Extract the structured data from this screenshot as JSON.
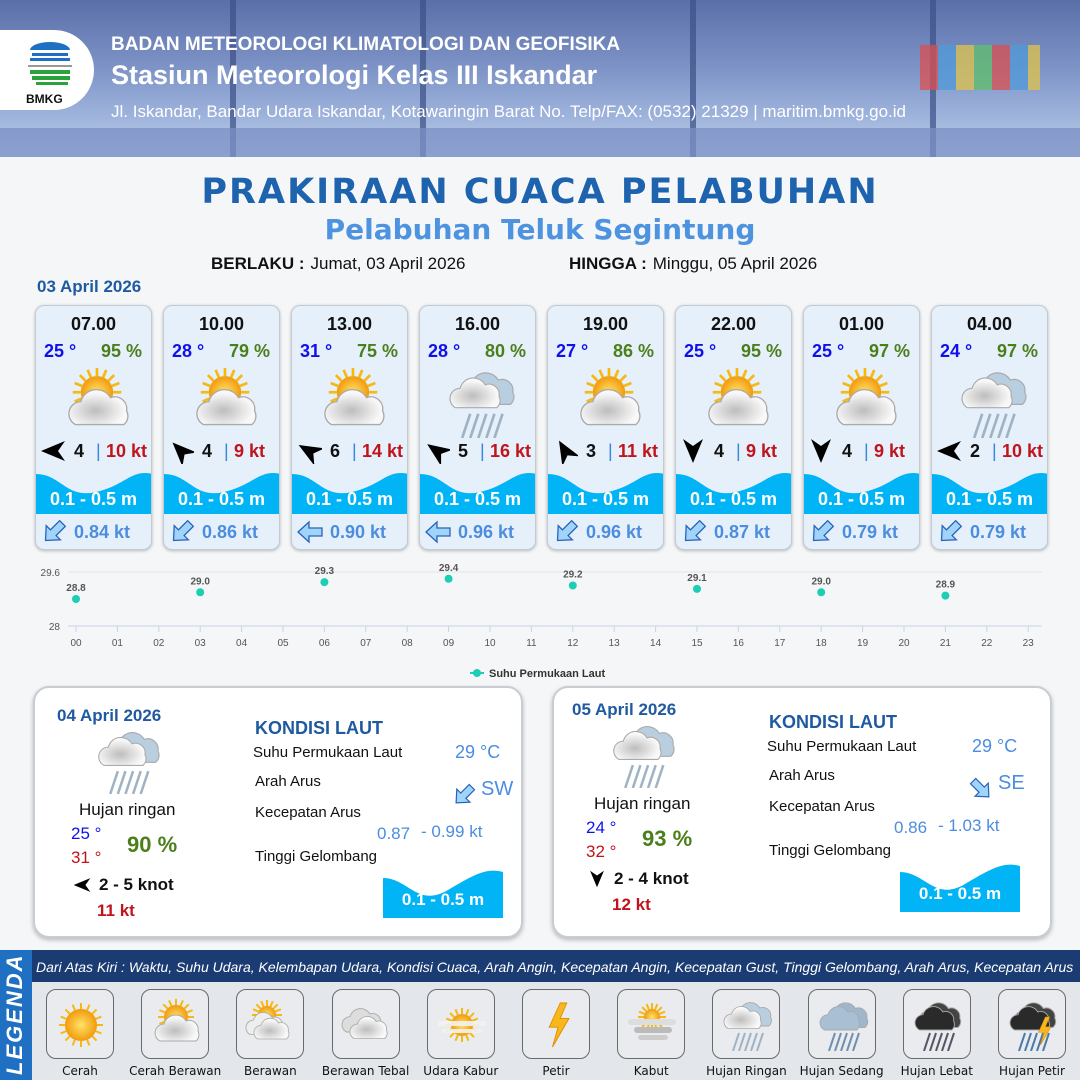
{
  "header": {
    "agency": "BADAN METEOROLOGI KLIMATOLOGI DAN GEOFISIKA",
    "station": "Stasiun Meteorologi Kelas III Iskandar",
    "address": "Jl. Iskandar, Bandar Udara Iskandar, Kotawaringin Barat No. Telp/FAX: (0532) 21329 | maritim.bmkg.go.id",
    "logo_text": "BMKG"
  },
  "title": "PRAKIRAAN CUACA PELABUHAN",
  "subtitle": "Pelabuhan Teluk Segintung",
  "validity": {
    "from_label": "BERLAKU :",
    "from_value": "Jumat, 03 April 2026",
    "to_label": "HINGGA :",
    "to_value": "Minggu, 05 April 2026"
  },
  "day1": {
    "date": "03 April 2026",
    "forecasts": [
      {
        "time": "07.00",
        "temp": "25 °",
        "humidity": "95 %",
        "weather": "cerah-berawan",
        "wind_dir_deg": 270,
        "wind_speed": "4",
        "gust": "10 kt",
        "wave": "0.1 - 0.5 m",
        "current_dir": "SW",
        "current_speed": "0.84 kt"
      },
      {
        "time": "10.00",
        "temp": "28 °",
        "humidity": "79 %",
        "weather": "cerah-berawan",
        "wind_dir_deg": 315,
        "wind_speed": "4",
        "gust": "9 kt",
        "wave": "0.1 - 0.5 m",
        "current_dir": "SW",
        "current_speed": "0.86 kt"
      },
      {
        "time": "13.00",
        "temp": "31 °",
        "humidity": "75 %",
        "weather": "cerah-berawan",
        "wind_dir_deg": 300,
        "wind_speed": "6",
        "gust": "14 kt",
        "wave": "0.1 - 0.5 m",
        "current_dir": "W",
        "current_speed": "0.90 kt"
      },
      {
        "time": "16.00",
        "temp": "28 °",
        "humidity": "80 %",
        "weather": "hujan-ringan",
        "wind_dir_deg": 305,
        "wind_speed": "5",
        "gust": "16 kt",
        "wave": "0.1 - 0.5 m",
        "current_dir": "W",
        "current_speed": "0.96 kt"
      },
      {
        "time": "19.00",
        "temp": "27 °",
        "humidity": "86 %",
        "weather": "cerah-berawan",
        "wind_dir_deg": 330,
        "wind_speed": "3",
        "gust": "11 kt",
        "wave": "0.1 - 0.5 m",
        "current_dir": "SW",
        "current_speed": "0.96 kt"
      },
      {
        "time": "22.00",
        "temp": "25 °",
        "humidity": "95 %",
        "weather": "cerah-berawan",
        "wind_dir_deg": 180,
        "wind_speed": "4",
        "gust": "9 kt",
        "wave": "0.1 - 0.5 m",
        "current_dir": "SW",
        "current_speed": "0.87 kt"
      },
      {
        "time": "01.00",
        "temp": "25 °",
        "humidity": "97 %",
        "weather": "cerah-berawan",
        "wind_dir_deg": 180,
        "wind_speed": "4",
        "gust": "9 kt",
        "wave": "0.1 - 0.5 m",
        "current_dir": "SW",
        "current_speed": "0.79 kt"
      },
      {
        "time": "04.00",
        "temp": "24 °",
        "humidity": "97 %",
        "weather": "hujan-ringan",
        "wind_dir_deg": 270,
        "wind_speed": "2",
        "gust": "10 kt",
        "wave": "0.1 - 0.5 m",
        "current_dir": "SW",
        "current_speed": "0.79 kt"
      }
    ]
  },
  "chart_data": {
    "type": "scatter",
    "categories": [
      "00",
      "01",
      "02",
      "03",
      "04",
      "05",
      "06",
      "07",
      "08",
      "09",
      "10",
      "11",
      "12",
      "13",
      "14",
      "15",
      "16",
      "17",
      "18",
      "19",
      "20",
      "21",
      "22",
      "23"
    ],
    "series": [
      {
        "name": "Suhu Permukaan Laut",
        "x": [
          "00",
          "03",
          "06",
          "09",
          "12",
          "15",
          "18",
          "21"
        ],
        "values": [
          28.8,
          29.0,
          29.3,
          29.4,
          29.2,
          29.1,
          29.0,
          28.9
        ],
        "color": "#1ccfb4"
      }
    ],
    "ylim": [
      28,
      29.6
    ],
    "yticks": [
      "28",
      "29.6"
    ],
    "grid": true,
    "legend": "bottom"
  },
  "panels": [
    {
      "date": "04 April 2026",
      "weather": "hujan-ringan",
      "weather_label": "Hujan ringan",
      "temp_min": "25 °",
      "temp_max": "31 °",
      "humidity": "90 %",
      "wind_dir_deg": 270,
      "wind": "2  - 5 knot",
      "gust": "11 kt",
      "sea_title": "KONDISI LAUT",
      "sst_label": "Suhu Permukaan Laut",
      "sst": "29 °C",
      "current_dir_label": "Arah Arus",
      "current_dir": "SW",
      "current_speed_label": "Kecepatan Arus",
      "current_speed_min": "0.87",
      "current_speed_max": "- 0.99 kt",
      "wave_label": "Tinggi Gelombang",
      "wave": "0.1 - 0.5 m"
    },
    {
      "date": "05 April 2026",
      "weather": "hujan-ringan",
      "weather_label": "Hujan ringan",
      "temp_min": "24 °",
      "temp_max": "32 °",
      "humidity": "93 %",
      "wind_dir_deg": 180,
      "wind": "2  - 4 knot",
      "gust": "12 kt",
      "sea_title": "KONDISI LAUT",
      "sst_label": "Suhu Permukaan Laut",
      "sst": "29 °C",
      "current_dir_label": "Arah Arus",
      "current_dir": "SE",
      "current_speed_label": "Kecepatan Arus",
      "current_speed_min": "0.86",
      "current_speed_max": "- 1.03 kt",
      "wave_label": "Tinggi Gelombang",
      "wave": "0.1 - 0.5 m"
    }
  ],
  "legend": {
    "title": "LEGENDA",
    "description": "Dari Atas Kiri : Waktu, Suhu Udara, Kelembapan Udara, Kondisi Cuaca, Arah Angin, Kecepatan Angin, Kecepatan Gust, Tinggi Gelombang, Arah Arus, Kecepatan Arus",
    "items": [
      {
        "label": "Cerah",
        "icon": "cerah"
      },
      {
        "label": "Cerah Berawan",
        "icon": "cerah-berawan"
      },
      {
        "label": "Berawan",
        "icon": "berawan"
      },
      {
        "label": "Berawan Tebal",
        "icon": "berawan-tebal"
      },
      {
        "label": "Udara Kabur",
        "icon": "udara-kabur"
      },
      {
        "label": "Petir",
        "icon": "petir"
      },
      {
        "label": "Kabut",
        "icon": "kabut"
      },
      {
        "label": "Hujan Ringan",
        "icon": "hujan-ringan"
      },
      {
        "label": "Hujan Sedang",
        "icon": "hujan-sedang"
      },
      {
        "label": "Hujan Lebat",
        "icon": "hujan-lebat"
      },
      {
        "label": "Hujan Petir",
        "icon": "hujan-petir"
      }
    ]
  },
  "colors": {
    "brand_blue": "#1f5aa0",
    "wave": "#00b4f5",
    "temp": "#1010ee",
    "humidity": "#4a7f1a",
    "gust": "#c0141c",
    "current": "#4b8de0"
  }
}
